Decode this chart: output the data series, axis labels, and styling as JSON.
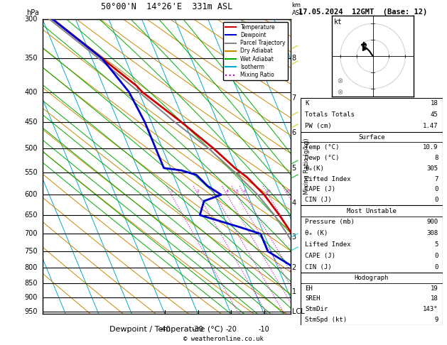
{
  "title_left": "50°00'N  14°26'E  331m ASL",
  "title_date": "17.05.2024  12GMT  (Base: 12)",
  "xlabel": "Dewpoint / Temperature (°C)",
  "pressure_ticks_all": [
    300,
    350,
    400,
    450,
    500,
    550,
    600,
    650,
    700,
    750,
    800,
    850,
    900,
    950
  ],
  "PMIN": 300,
  "PMAX": 960,
  "TMIN": -40,
  "TMAX": 35,
  "SKEW_RATE": 37,
  "temperature_profile": {
    "pressure": [
      300,
      350,
      390,
      400,
      450,
      500,
      540,
      560,
      600,
      650,
      700,
      750,
      800,
      850,
      900,
      950,
      960
    ],
    "temp": [
      -37,
      -27,
      -20,
      -19,
      -11,
      -4.5,
      -0.5,
      2,
      5,
      7,
      8.5,
      9.5,
      10.5,
      10.5,
      10.5,
      10.8,
      10.9
    ]
  },
  "dewpoint_profile": {
    "pressure": [
      300,
      350,
      400,
      450,
      500,
      540,
      545,
      555,
      580,
      600,
      615,
      650,
      680,
      700,
      750,
      800,
      850,
      900,
      950,
      960
    ],
    "temp": [
      -37,
      -27,
      -23,
      -22,
      -22,
      -22,
      -17,
      -13,
      -11,
      -8,
      -14,
      -17,
      -7,
      -1,
      -1,
      5,
      7,
      8,
      8,
      8
    ]
  },
  "parcel_trajectory": {
    "pressure": [
      300,
      350,
      400,
      450,
      500,
      550,
      600,
      650,
      700,
      750,
      800,
      850,
      900,
      950,
      960
    ],
    "temp": [
      -38,
      -28,
      -20,
      -13,
      -6,
      -1,
      3,
      5.5,
      7,
      8,
      9,
      9.5,
      10,
      10.5,
      10.8
    ]
  },
  "temp_color": "#cc0000",
  "dewpoint_color": "#0000cc",
  "parcel_color": "#888888",
  "dry_adiabat_color": "#cc8800",
  "wet_adiabat_color": "#00aa00",
  "isotherm_color": "#00aacc",
  "mixing_ratio_color": "#cc00cc",
  "legend_entries": [
    "Temperature",
    "Dewpoint",
    "Parcel Trajectory",
    "Dry Adiabat",
    "Wet Adiabat",
    "Isotherm",
    "Mixing Ratio"
  ],
  "legend_colors": [
    "#cc0000",
    "#0000cc",
    "#888888",
    "#cc8800",
    "#00aa00",
    "#00aacc",
    "#cc00cc"
  ],
  "legend_styles": [
    "solid",
    "solid",
    "solid",
    "solid",
    "solid",
    "solid",
    "dotted"
  ],
  "stats": {
    "K": 18,
    "Totals_Totals": 45,
    "PW_cm": 1.47,
    "Surface_Temp": 10.9,
    "Surface_Dewp": 8,
    "Surface_theta_e": 305,
    "Surface_LI": 7,
    "Surface_CAPE": 0,
    "Surface_CIN": 0,
    "MU_Pressure": 900,
    "MU_theta_e": 308,
    "MU_LI": 5,
    "MU_CAPE": 0,
    "MU_CIN": 0,
    "EH": 19,
    "SREH": 18,
    "StmDir": 143,
    "StmSpd": 9
  }
}
